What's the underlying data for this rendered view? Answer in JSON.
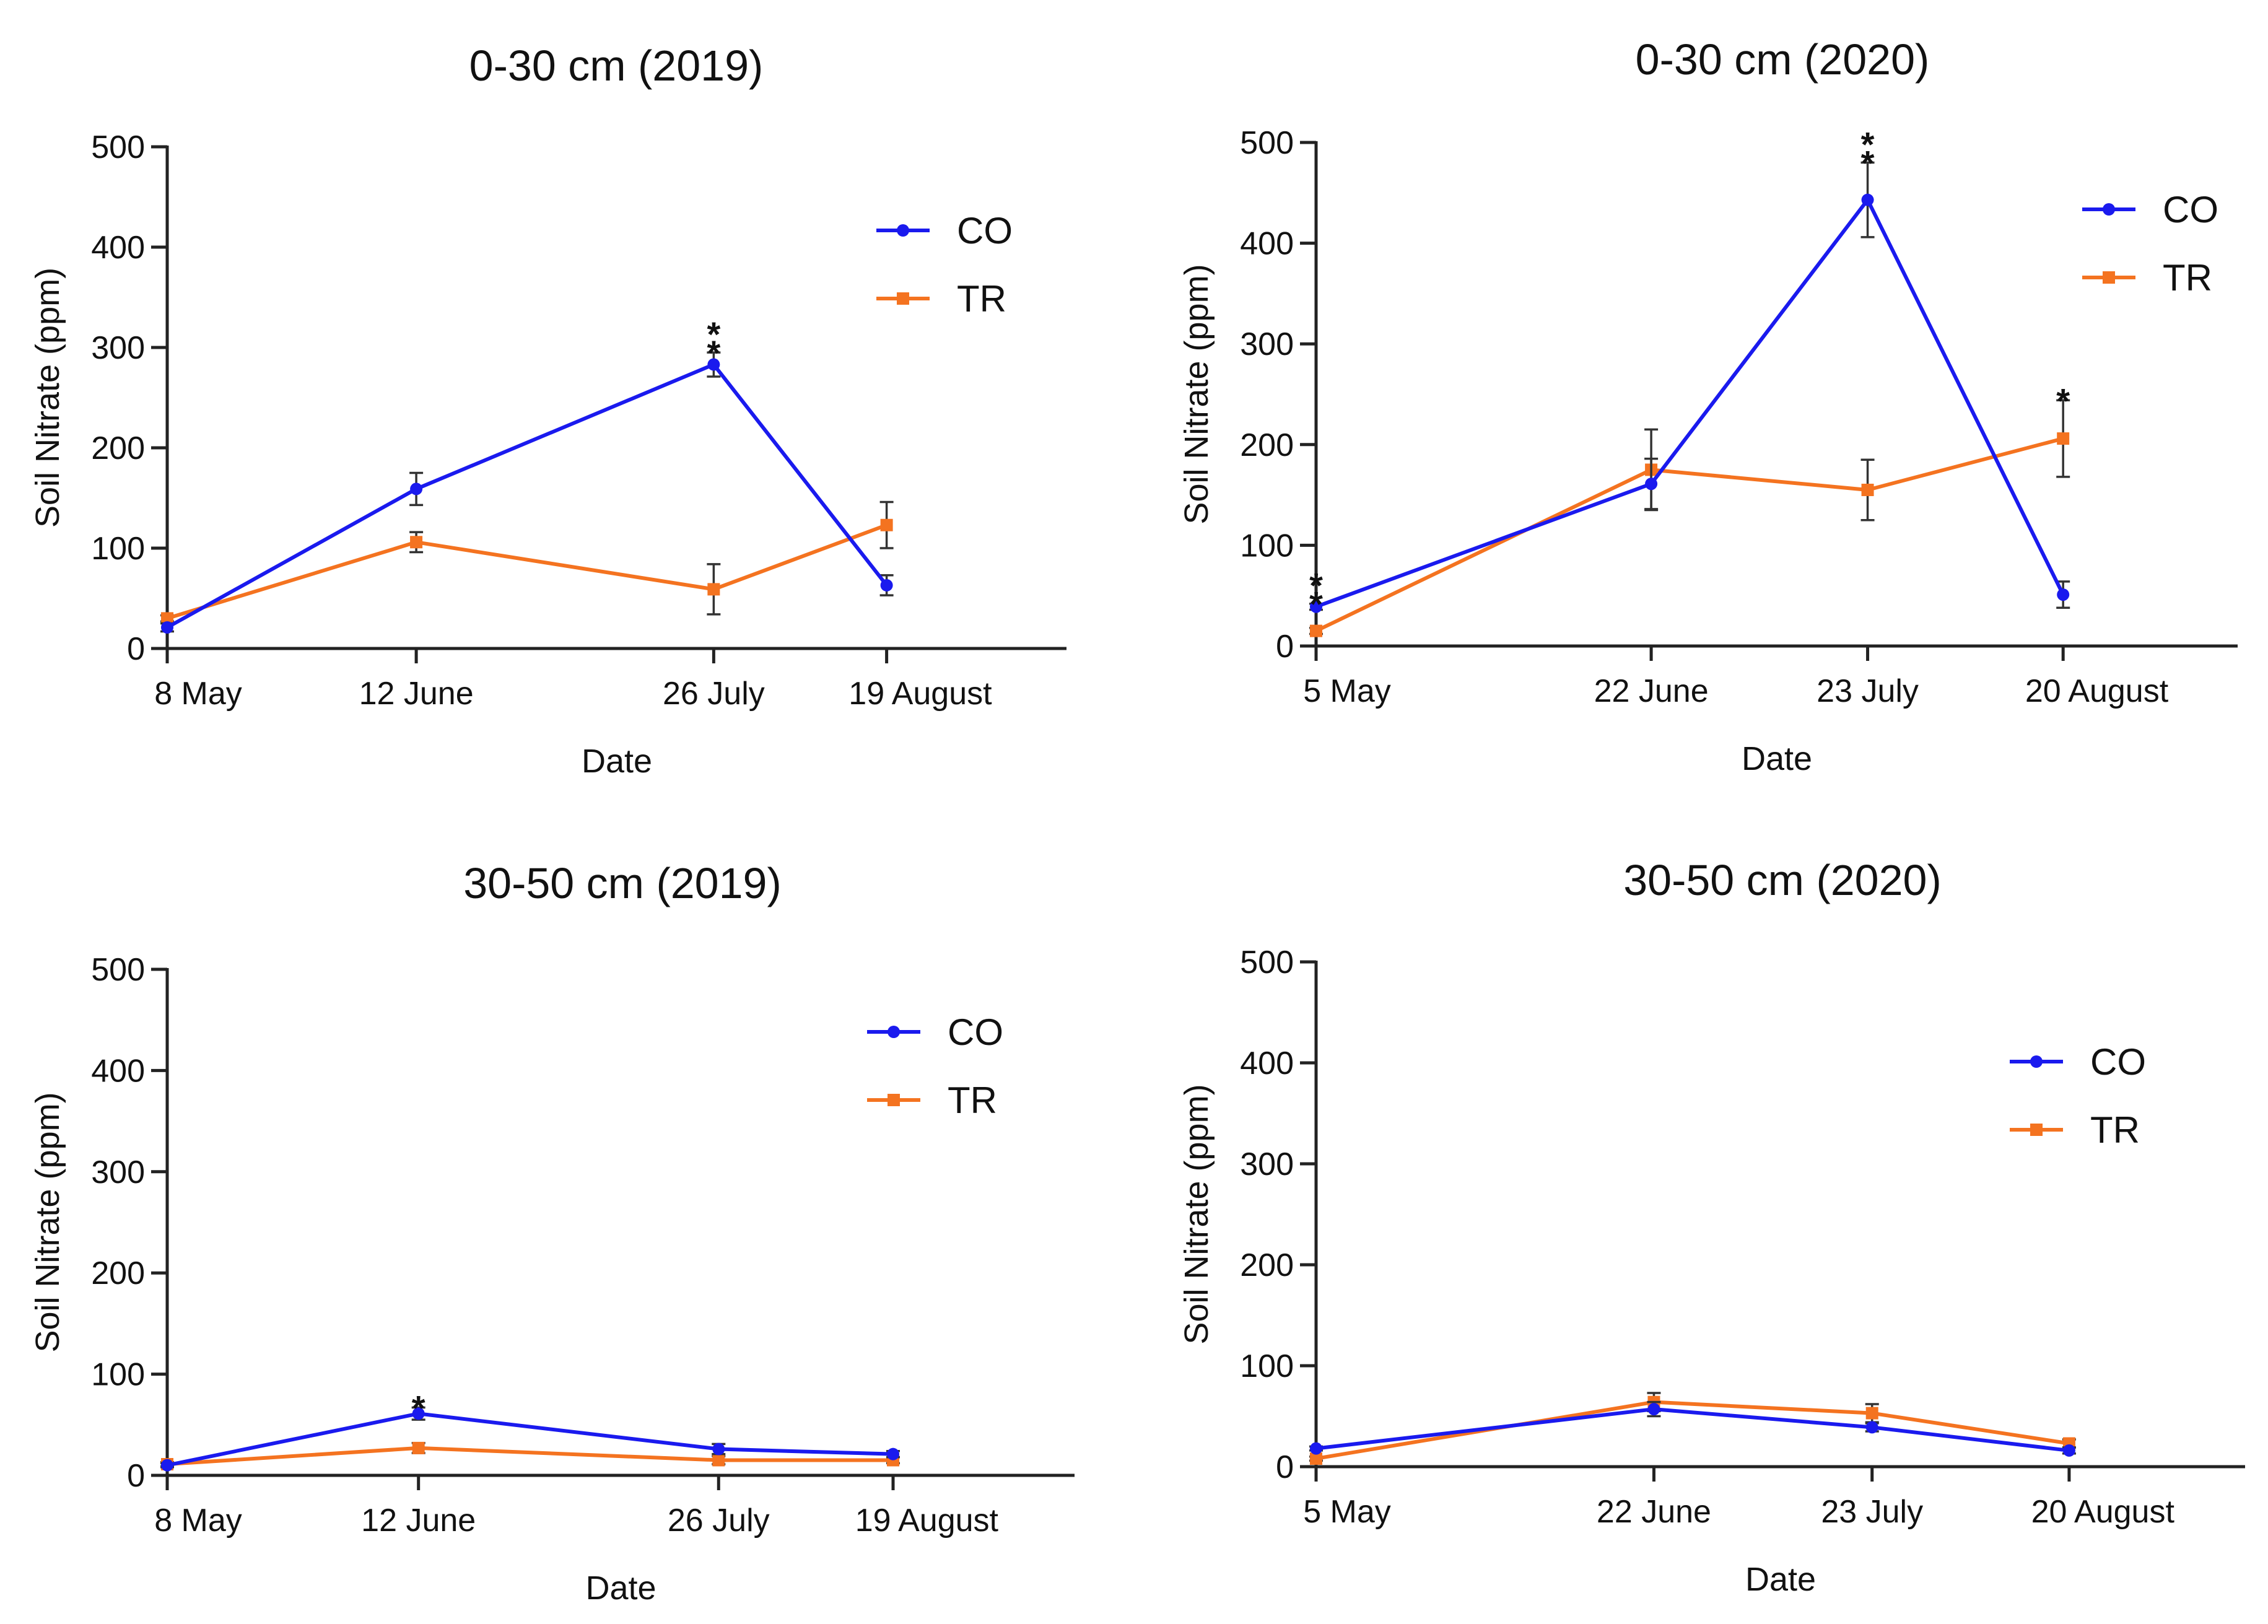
{
  "colors": {
    "CO": "#1a1aee",
    "TR": "#f47320"
  },
  "chart_data": [
    {
      "type": "line",
      "title": "0-30 cm (2019)",
      "xlabel": "Date",
      "ylabel": "Soil Nitrate (ppm)",
      "ylim": [
        0,
        500
      ],
      "yticks": [
        0,
        100,
        200,
        300,
        400,
        500
      ],
      "categories": [
        "8 May",
        "12 June",
        "26 July",
        "19 August"
      ],
      "x": [
        0,
        36,
        79,
        104
      ],
      "xlim": [
        0,
        130
      ],
      "series": [
        {
          "name": "CO",
          "values": [
            21,
            159,
            283,
            63
          ],
          "errors": [
            4,
            16,
            12,
            10
          ]
        },
        {
          "name": "TR",
          "values": [
            30,
            106,
            59,
            123
          ],
          "errors": [
            3,
            10,
            25,
            23
          ]
        }
      ],
      "annotations": [
        {
          "text": "**",
          "x_index": 2
        }
      ]
    },
    {
      "type": "line",
      "title": "0-30 cm (2020)",
      "xlabel": "Date",
      "ylabel": "Soil Nitrate (ppm)",
      "ylim": [
        0,
        500
      ],
      "yticks": [
        0,
        100,
        200,
        300,
        400,
        500
      ],
      "categories": [
        "5 May",
        "22 June",
        "23 July",
        "20 August"
      ],
      "x": [
        0,
        48,
        79,
        107
      ],
      "xlim": [
        0,
        132
      ],
      "series": [
        {
          "name": "CO",
          "values": [
            39,
            161,
            443,
            51
          ],
          "errors": [
            3,
            25,
            37,
            13
          ]
        },
        {
          "name": "TR",
          "values": [
            15,
            175,
            155,
            206
          ],
          "errors": [
            3,
            40,
            30,
            38
          ]
        }
      ],
      "annotations": [
        {
          "text": "**",
          "x_index": 0
        },
        {
          "text": "**",
          "x_index": 2
        },
        {
          "text": "*",
          "x_index": 3
        }
      ]
    },
    {
      "type": "line",
      "title": "30-50 cm (2019)",
      "xlabel": "Date",
      "ylabel": "Soil Nitrate (ppm)",
      "ylim": [
        0,
        500
      ],
      "yticks": [
        0,
        100,
        200,
        300,
        400,
        500
      ],
      "categories": [
        "8 May",
        "12 June",
        "26 July",
        "19 August"
      ],
      "x": [
        0,
        36,
        79,
        104
      ],
      "xlim": [
        0,
        130
      ],
      "series": [
        {
          "name": "CO",
          "values": [
            10,
            61,
            26,
            21
          ],
          "errors": [
            2,
            6,
            5,
            3
          ]
        },
        {
          "name": "TR",
          "values": [
            11,
            27,
            15,
            15
          ],
          "errors": [
            2,
            5,
            4,
            3
          ]
        }
      ],
      "annotations": [
        {
          "text": "*",
          "x_index": 1
        }
      ]
    },
    {
      "type": "line",
      "title": "30-50 cm (2020)",
      "xlabel": "Date",
      "ylabel": "Soil Nitrate (ppm)",
      "ylim": [
        0,
        500
      ],
      "yticks": [
        0,
        100,
        200,
        300,
        400,
        500
      ],
      "categories": [
        "5 May",
        "22 June",
        "23 July",
        "20 August"
      ],
      "x": [
        0,
        48,
        79,
        107
      ],
      "xlim": [
        0,
        132
      ],
      "series": [
        {
          "name": "CO",
          "values": [
            18,
            57,
            39,
            16
          ],
          "errors": [
            2,
            7,
            4,
            3
          ]
        },
        {
          "name": "TR",
          "values": [
            8,
            64,
            53,
            23
          ],
          "errors": [
            2,
            9,
            9,
            4
          ]
        }
      ],
      "annotations": []
    }
  ]
}
